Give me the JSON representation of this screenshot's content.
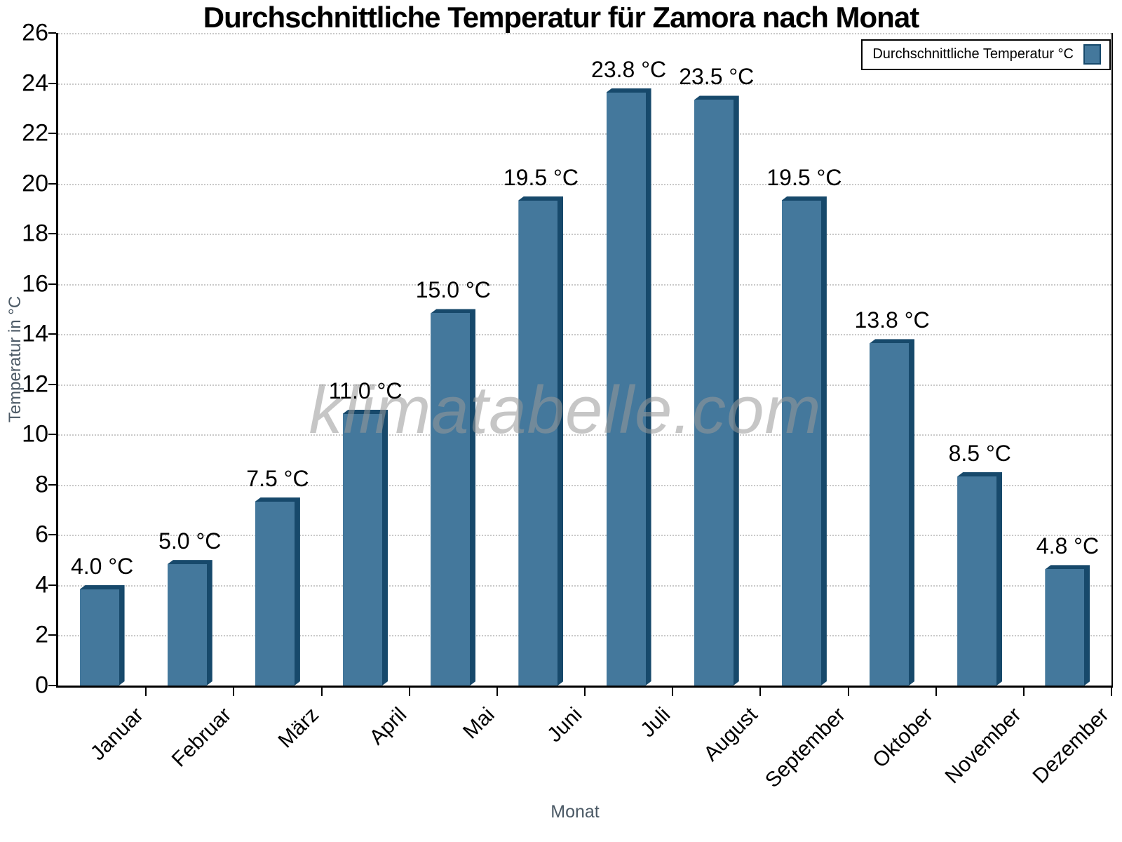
{
  "title": "Durchschnittliche Temperatur für Zamora nach Monat",
  "watermark": "klimatabelle.com",
  "legend_label": "Durchschnittliche Temperatur °C",
  "x_axis_title": "Monat",
  "y_axis_title": "Temperatur in °C",
  "chart_data": {
    "type": "bar",
    "title": "Durchschnittliche Temperatur für Zamora nach Monat",
    "categories": [
      "Januar",
      "Februar",
      "März",
      "April",
      "Mai",
      "Juni",
      "Juli",
      "August",
      "September",
      "Oktober",
      "November",
      "Dezember"
    ],
    "series": [
      {
        "name": "Durchschnittliche Temperatur °C",
        "values": [
          4.0,
          5.0,
          7.5,
          11.0,
          15.0,
          19.5,
          23.8,
          23.5,
          19.5,
          13.8,
          8.5,
          4.8
        ]
      }
    ],
    "value_labels": [
      "4.0 °C",
      "5.0 °C",
      "7.5 °C",
      "11.0 °C",
      "15.0 °C",
      "19.5 °C",
      "23.8 °C",
      "23.5 °C",
      "19.5 °C",
      "13.8 °C",
      "8.5 °C",
      "4.8 °C"
    ],
    "xlabel": "Monat",
    "ylabel": "Temperatur in °C",
    "ylim": [
      0,
      26
    ],
    "y_ticks": [
      0,
      2,
      4,
      6,
      8,
      10,
      12,
      14,
      16,
      18,
      20,
      22,
      24,
      26
    ],
    "grid": "horizontal-dotted",
    "legend_position": "top-right-inside",
    "x_tick_rotation": -45,
    "colors": {
      "bar_face": "#44789C",
      "bar_edge": "#17496B",
      "gridline": "#c9c9c9",
      "axis": "#000000",
      "axis_title": "#4b5965",
      "watermark": "#999999"
    }
  }
}
